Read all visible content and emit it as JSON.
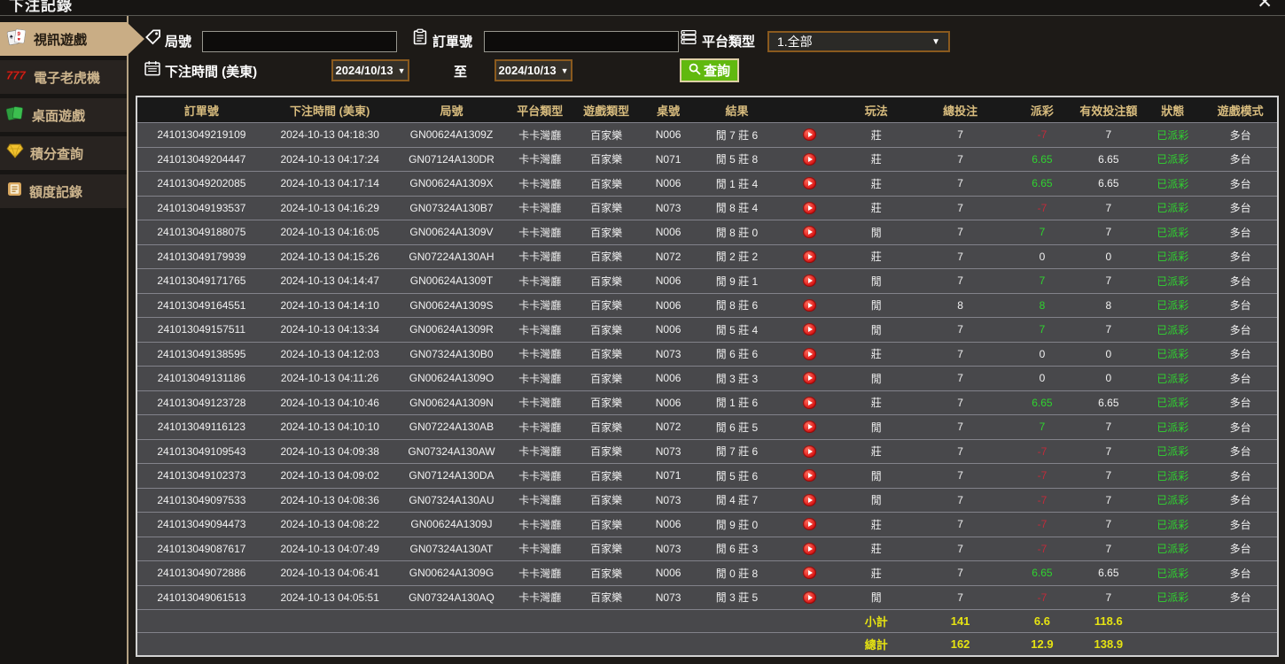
{
  "window": {
    "title": "下注記錄",
    "close_glyph": "✕"
  },
  "sidebar": {
    "items": [
      {
        "label": "視訊遊戲",
        "icon": "video-cards-icon",
        "active": true
      },
      {
        "label": "電子老虎機",
        "icon": "slot-777-icon",
        "active": false
      },
      {
        "label": "桌面遊戲",
        "icon": "table-cards-icon",
        "active": false
      },
      {
        "label": "積分查詢",
        "icon": "gem-icon",
        "active": false
      },
      {
        "label": "額度記錄",
        "icon": "ledger-icon",
        "active": false
      }
    ]
  },
  "filters": {
    "round_label": "局號",
    "round_value": "",
    "order_label": "訂單號",
    "order_value": "",
    "platform_label": "平台類型",
    "platform_value": "1.全部",
    "time_label": "下注時間 (美東)",
    "date_from": "2024/10/13",
    "to_label": "至",
    "date_to": "2024/10/13",
    "search_label": "查詢"
  },
  "colors": {
    "accent_tan": "#c9ad85",
    "gold_header": "#d8bc7e",
    "green_value": "#2fd32f",
    "red_value": "#c22b3a",
    "yellow_total": "#e6e312",
    "search_green": "#61b90f",
    "date_border": "#8a5a1e"
  },
  "table": {
    "headers": [
      "訂單號",
      "下注時間 (美東)",
      "局號",
      "平台類型",
      "遊戲類型",
      "桌號",
      "結果",
      "",
      "玩法",
      "總投注",
      "派彩",
      "有效投注額",
      "狀態",
      "遊戲模式"
    ],
    "rows": [
      {
        "order": "241013049219109",
        "time": "2024-10-13 04:18:30",
        "round": "GN00624A1309Z",
        "platform": "卡卡灣廳",
        "game": "百家樂",
        "table_no": "N006",
        "result": "閒 7 莊 6",
        "bet": "莊",
        "total": "7",
        "payout": "-7",
        "valid": "7",
        "status": "已派彩",
        "mode": "多台"
      },
      {
        "order": "241013049204447",
        "time": "2024-10-13 04:17:24",
        "round": "GN07124A130DR",
        "platform": "卡卡灣廳",
        "game": "百家樂",
        "table_no": "N071",
        "result": "閒 5 莊 8",
        "bet": "莊",
        "total": "7",
        "payout": "6.65",
        "valid": "6.65",
        "status": "已派彩",
        "mode": "多台"
      },
      {
        "order": "241013049202085",
        "time": "2024-10-13 04:17:14",
        "round": "GN00624A1309X",
        "platform": "卡卡灣廳",
        "game": "百家樂",
        "table_no": "N006",
        "result": "閒 1 莊 4",
        "bet": "莊",
        "total": "7",
        "payout": "6.65",
        "valid": "6.65",
        "status": "已派彩",
        "mode": "多台"
      },
      {
        "order": "241013049193537",
        "time": "2024-10-13 04:16:29",
        "round": "GN07324A130B7",
        "platform": "卡卡灣廳",
        "game": "百家樂",
        "table_no": "N073",
        "result": "閒 8 莊 4",
        "bet": "莊",
        "total": "7",
        "payout": "-7",
        "valid": "7",
        "status": "已派彩",
        "mode": "多台"
      },
      {
        "order": "241013049188075",
        "time": "2024-10-13 04:16:05",
        "round": "GN00624A1309V",
        "platform": "卡卡灣廳",
        "game": "百家樂",
        "table_no": "N006",
        "result": "閒 8 莊 0",
        "bet": "閒",
        "total": "7",
        "payout": "7",
        "valid": "7",
        "status": "已派彩",
        "mode": "多台"
      },
      {
        "order": "241013049179939",
        "time": "2024-10-13 04:15:26",
        "round": "GN07224A130AH",
        "platform": "卡卡灣廳",
        "game": "百家樂",
        "table_no": "N072",
        "result": "閒 2 莊 2",
        "bet": "莊",
        "total": "7",
        "payout": "0",
        "valid": "0",
        "status": "已派彩",
        "mode": "多台"
      },
      {
        "order": "241013049171765",
        "time": "2024-10-13 04:14:47",
        "round": "GN00624A1309T",
        "platform": "卡卡灣廳",
        "game": "百家樂",
        "table_no": "N006",
        "result": "閒 9 莊 1",
        "bet": "閒",
        "total": "7",
        "payout": "7",
        "valid": "7",
        "status": "已派彩",
        "mode": "多台"
      },
      {
        "order": "241013049164551",
        "time": "2024-10-13 04:14:10",
        "round": "GN00624A1309S",
        "platform": "卡卡灣廳",
        "game": "百家樂",
        "table_no": "N006",
        "result": "閒 8 莊 6",
        "bet": "閒",
        "total": "8",
        "payout": "8",
        "valid": "8",
        "status": "已派彩",
        "mode": "多台"
      },
      {
        "order": "241013049157511",
        "time": "2024-10-13 04:13:34",
        "round": "GN00624A1309R",
        "platform": "卡卡灣廳",
        "game": "百家樂",
        "table_no": "N006",
        "result": "閒 5 莊 4",
        "bet": "閒",
        "total": "7",
        "payout": "7",
        "valid": "7",
        "status": "已派彩",
        "mode": "多台"
      },
      {
        "order": "241013049138595",
        "time": "2024-10-13 04:12:03",
        "round": "GN07324A130B0",
        "platform": "卡卡灣廳",
        "game": "百家樂",
        "table_no": "N073",
        "result": "閒 6 莊 6",
        "bet": "莊",
        "total": "7",
        "payout": "0",
        "valid": "0",
        "status": "已派彩",
        "mode": "多台"
      },
      {
        "order": "241013049131186",
        "time": "2024-10-13 04:11:26",
        "round": "GN00624A1309O",
        "platform": "卡卡灣廳",
        "game": "百家樂",
        "table_no": "N006",
        "result": "閒 3 莊 3",
        "bet": "閒",
        "total": "7",
        "payout": "0",
        "valid": "0",
        "status": "已派彩",
        "mode": "多台"
      },
      {
        "order": "241013049123728",
        "time": "2024-10-13 04:10:46",
        "round": "GN00624A1309N",
        "platform": "卡卡灣廳",
        "game": "百家樂",
        "table_no": "N006",
        "result": "閒 1 莊 6",
        "bet": "莊",
        "total": "7",
        "payout": "6.65",
        "valid": "6.65",
        "status": "已派彩",
        "mode": "多台"
      },
      {
        "order": "241013049116123",
        "time": "2024-10-13 04:10:10",
        "round": "GN07224A130AB",
        "platform": "卡卡灣廳",
        "game": "百家樂",
        "table_no": "N072",
        "result": "閒 6 莊 5",
        "bet": "閒",
        "total": "7",
        "payout": "7",
        "valid": "7",
        "status": "已派彩",
        "mode": "多台"
      },
      {
        "order": "241013049109543",
        "time": "2024-10-13 04:09:38",
        "round": "GN07324A130AW",
        "platform": "卡卡灣廳",
        "game": "百家樂",
        "table_no": "N073",
        "result": "閒 7 莊 6",
        "bet": "莊",
        "total": "7",
        "payout": "-7",
        "valid": "7",
        "status": "已派彩",
        "mode": "多台"
      },
      {
        "order": "241013049102373",
        "time": "2024-10-13 04:09:02",
        "round": "GN07124A130DA",
        "platform": "卡卡灣廳",
        "game": "百家樂",
        "table_no": "N071",
        "result": "閒 5 莊 6",
        "bet": "閒",
        "total": "7",
        "payout": "-7",
        "valid": "7",
        "status": "已派彩",
        "mode": "多台"
      },
      {
        "order": "241013049097533",
        "time": "2024-10-13 04:08:36",
        "round": "GN07324A130AU",
        "platform": "卡卡灣廳",
        "game": "百家樂",
        "table_no": "N073",
        "result": "閒 4 莊 7",
        "bet": "閒",
        "total": "7",
        "payout": "-7",
        "valid": "7",
        "status": "已派彩",
        "mode": "多台"
      },
      {
        "order": "241013049094473",
        "time": "2024-10-13 04:08:22",
        "round": "GN00624A1309J",
        "platform": "卡卡灣廳",
        "game": "百家樂",
        "table_no": "N006",
        "result": "閒 9 莊 0",
        "bet": "莊",
        "total": "7",
        "payout": "-7",
        "valid": "7",
        "status": "已派彩",
        "mode": "多台"
      },
      {
        "order": "241013049087617",
        "time": "2024-10-13 04:07:49",
        "round": "GN07324A130AT",
        "platform": "卡卡灣廳",
        "game": "百家樂",
        "table_no": "N073",
        "result": "閒 6 莊 3",
        "bet": "莊",
        "total": "7",
        "payout": "-7",
        "valid": "7",
        "status": "已派彩",
        "mode": "多台"
      },
      {
        "order": "241013049072886",
        "time": "2024-10-13 04:06:41",
        "round": "GN00624A1309G",
        "platform": "卡卡灣廳",
        "game": "百家樂",
        "table_no": "N006",
        "result": "閒 0 莊 8",
        "bet": "莊",
        "total": "7",
        "payout": "6.65",
        "valid": "6.65",
        "status": "已派彩",
        "mode": "多台"
      },
      {
        "order": "241013049061513",
        "time": "2024-10-13 04:05:51",
        "round": "GN07324A130AQ",
        "platform": "卡卡灣廳",
        "game": "百家樂",
        "table_no": "N073",
        "result": "閒 3 莊 5",
        "bet": "閒",
        "total": "7",
        "payout": "-7",
        "valid": "7",
        "status": "已派彩",
        "mode": "多台"
      }
    ],
    "subtotal": {
      "label": "小計",
      "total_bet": "141",
      "payout": "6.6",
      "valid": "118.6"
    },
    "grand_total": {
      "label": "總計",
      "total_bet": "162",
      "payout": "12.9",
      "valid": "138.9"
    }
  }
}
